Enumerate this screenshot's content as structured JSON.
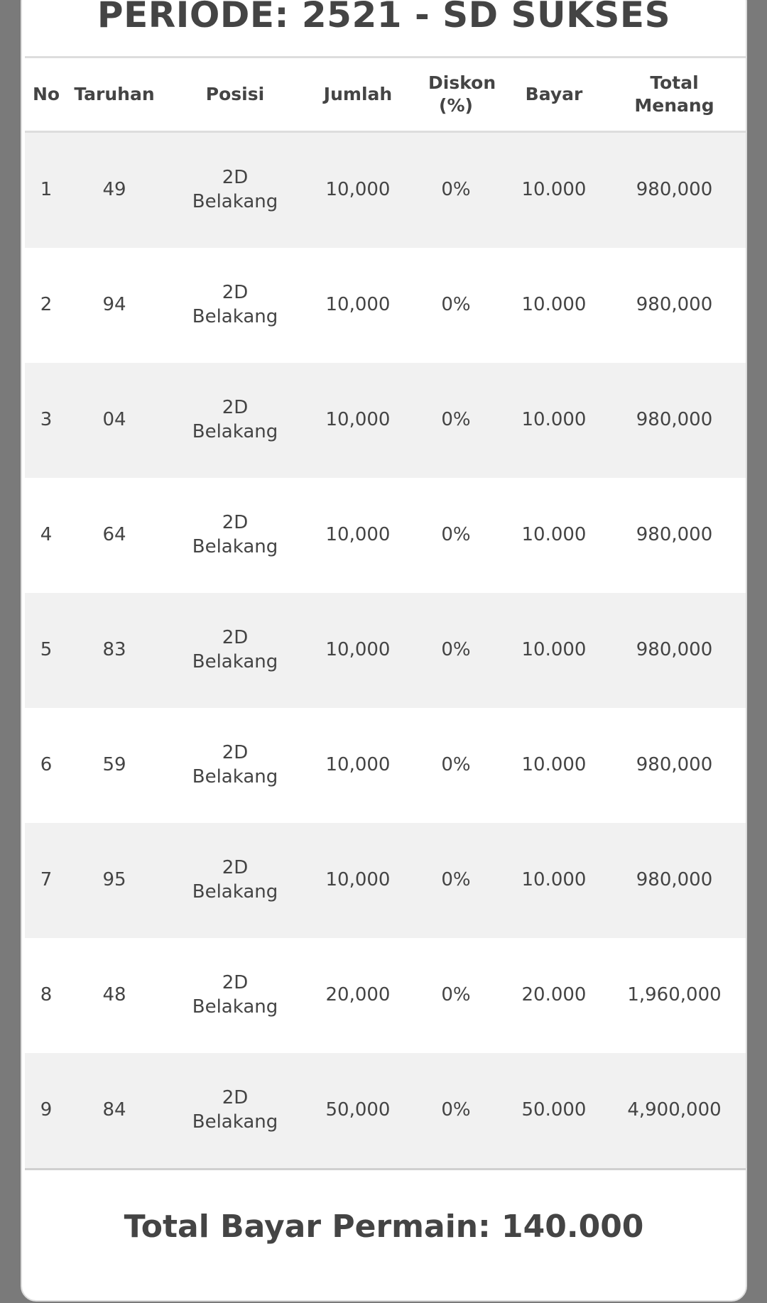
{
  "title": "PERIODE: 2521 - SD SUKSES",
  "columns": [
    "No",
    "Taruhan",
    "Posisi",
    "Jumlah",
    "Diskon (%)",
    "Bayar",
    "Total Menang"
  ],
  "rows": [
    {
      "no": "1",
      "taruhan": "49",
      "posisi": "2D Belakang",
      "jumlah": "10,000",
      "diskon": "0%",
      "bayar": "10.000",
      "total": "980,000"
    },
    {
      "no": "2",
      "taruhan": "94",
      "posisi": "2D Belakang",
      "jumlah": "10,000",
      "diskon": "0%",
      "bayar": "10.000",
      "total": "980,000"
    },
    {
      "no": "3",
      "taruhan": "04",
      "posisi": "2D Belakang",
      "jumlah": "10,000",
      "diskon": "0%",
      "bayar": "10.000",
      "total": "980,000"
    },
    {
      "no": "4",
      "taruhan": "64",
      "posisi": "2D Belakang",
      "jumlah": "10,000",
      "diskon": "0%",
      "bayar": "10.000",
      "total": "980,000"
    },
    {
      "no": "5",
      "taruhan": "83",
      "posisi": "2D Belakang",
      "jumlah": "10,000",
      "diskon": "0%",
      "bayar": "10.000",
      "total": "980,000"
    },
    {
      "no": "6",
      "taruhan": "59",
      "posisi": "2D Belakang",
      "jumlah": "10,000",
      "diskon": "0%",
      "bayar": "10.000",
      "total": "980,000"
    },
    {
      "no": "7",
      "taruhan": "95",
      "posisi": "2D Belakang",
      "jumlah": "10,000",
      "diskon": "0%",
      "bayar": "10.000",
      "total": "980,000"
    },
    {
      "no": "8",
      "taruhan": "48",
      "posisi": "2D Belakang",
      "jumlah": "20,000",
      "diskon": "0%",
      "bayar": "20.000",
      "total": "1,960,000"
    },
    {
      "no": "9",
      "taruhan": "84",
      "posisi": "2D Belakang",
      "jumlah": "50,000",
      "diskon": "0%",
      "bayar": "50.000",
      "total": "4,900,000"
    }
  ],
  "footer": "Total Bayar Permain: 140.000"
}
